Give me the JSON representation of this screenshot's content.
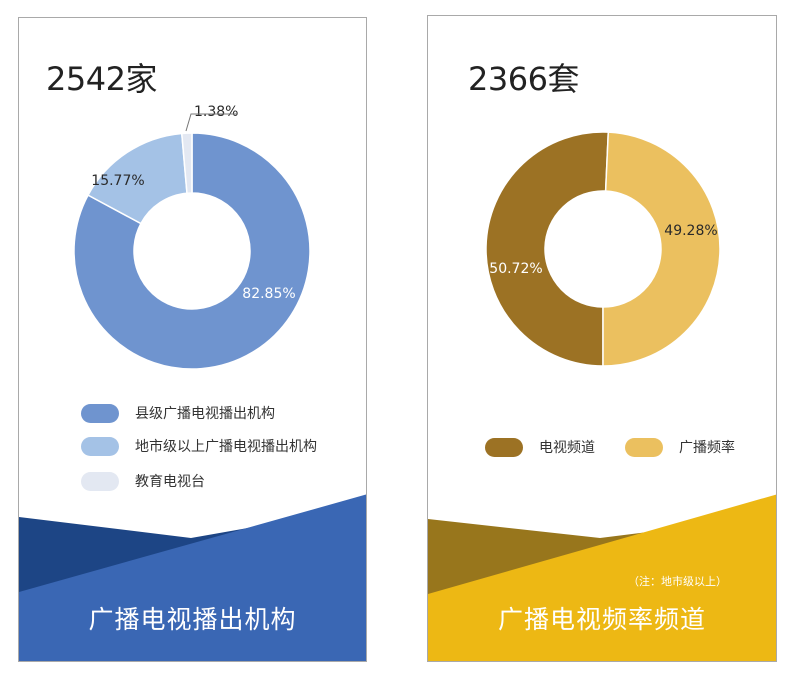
{
  "chart_data": [
    {
      "type": "pie",
      "donut": true,
      "total_label": "2542家",
      "labels": [
        "县级广播电视播出机构",
        "地市级以上广播电视播出机构",
        "教育电视台"
      ],
      "values": [
        82.85,
        15.77,
        1.38
      ],
      "value_labels": [
        "82.85%",
        "15.77%",
        "1.38%"
      ],
      "colors": [
        "#6f94cf",
        "#a4c2e6",
        "#e3e8f2"
      ],
      "legend_position": "bottom",
      "footer_title": "广播电视播出机构",
      "band_colors": [
        "#1d4585",
        "#3a67b4"
      ]
    },
    {
      "type": "pie",
      "donut": true,
      "total_label": "2366套",
      "labels": [
        "电视频道",
        "广播频率"
      ],
      "values": [
        50.72,
        49.28
      ],
      "value_labels": [
        "50.72%",
        "49.28%"
      ],
      "colors": [
        "#9c7224",
        "#ebc05f"
      ],
      "legend_position": "bottom",
      "footer_title": "广播电视频率频道",
      "note": "（注：地市级以上）",
      "band_colors": [
        "#98761c",
        "#edb814"
      ]
    }
  ]
}
